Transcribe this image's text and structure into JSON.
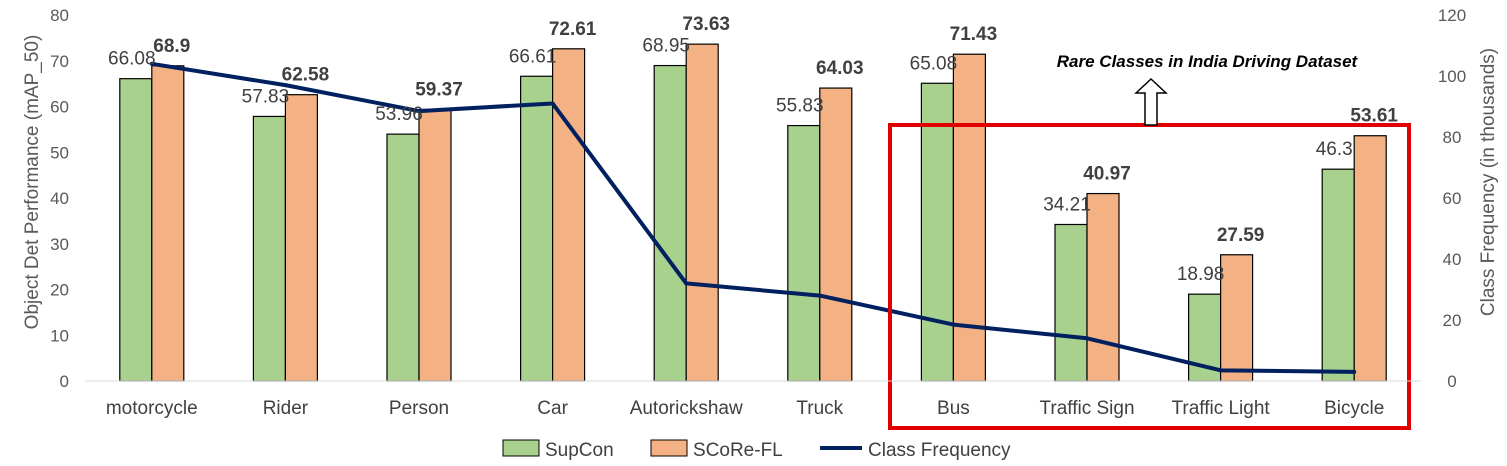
{
  "chart_data": {
    "type": "bar",
    "categories": [
      "motorcycle",
      "Rider",
      "Person",
      "Car",
      "Autorickshaw",
      "Truck",
      "Bus",
      "Traffic Sign",
      "Traffic Light",
      "Bicycle"
    ],
    "series": [
      {
        "name": "SupCon",
        "color": "#a9d18e",
        "axis": "left",
        "values": [
          66.08,
          57.83,
          53.96,
          66.61,
          68.95,
          55.83,
          65.08,
          34.21,
          18.98,
          46.3
        ],
        "labels": [
          "66.08",
          "57.83",
          "53.96",
          "66.61",
          "68.95",
          "55.83",
          "65.08",
          "34.21",
          "18.98",
          "46.3"
        ]
      },
      {
        "name": "SCoRe-FL",
        "color": "#f4b183",
        "axis": "left",
        "values": [
          68.9,
          62.58,
          59.37,
          72.61,
          73.63,
          64.03,
          71.43,
          40.97,
          27.59,
          53.61
        ],
        "labels": [
          "68.9",
          "62.58",
          "59.37",
          "72.61",
          "73.63",
          "64.03",
          "71.43",
          "40.97",
          "27.59",
          "53.61"
        ]
      },
      {
        "name": "Class Frequency",
        "type": "line",
        "color": "#002060",
        "axis": "right",
        "values": [
          104,
          97,
          88.5,
          91,
          32,
          28,
          18.5,
          14,
          3.5,
          3
        ]
      }
    ],
    "ylabel": "Object Det Performance (mAP_50)",
    "ylim": [
      0,
      80
    ],
    "yticks": [
      "0",
      "10",
      "20",
      "30",
      "40",
      "50",
      "60",
      "70",
      "80"
    ],
    "y2label": "Class Frequency (in thousands)",
    "y2lim": [
      0,
      120
    ],
    "y2ticks": [
      "0",
      "20",
      "40",
      "60",
      "80",
      "100",
      "120"
    ],
    "legend_position": "bottom",
    "annotation": "Rare Classes in India Driving Dataset",
    "highlight_color": "#e00000",
    "grid": false
  }
}
